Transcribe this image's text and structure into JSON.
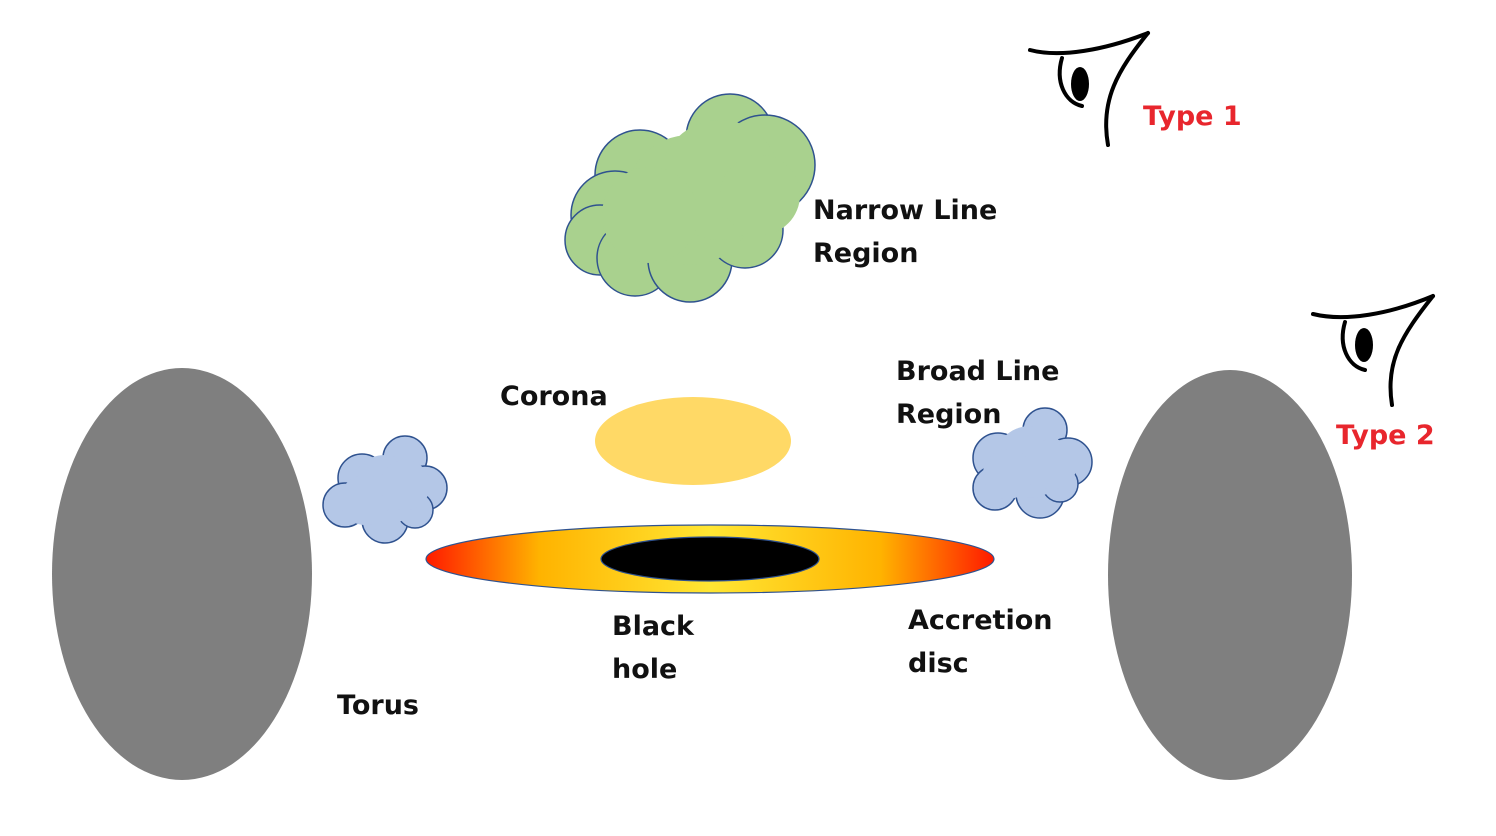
{
  "labels": {
    "narrow_line_region": [
      "Narrow Line",
      "Region"
    ],
    "broad_line_region": [
      "Broad Line",
      "Region"
    ],
    "corona": "Corona",
    "black_hole": [
      "Black",
      "hole"
    ],
    "accretion_disc": [
      "Accretion",
      "disc"
    ],
    "torus": "Torus"
  },
  "viewers": {
    "type1": "Type 1",
    "type2": "Type 2"
  },
  "colors": {
    "torus": "#7f7f7f",
    "narrow_line_cloud": "#a9d18e",
    "broad_line_cloud": "#b4c7e7",
    "cloud_outline": "#2f528f",
    "corona": "#ffd966",
    "disc_center": "#ffe033",
    "disc_mid": "#ffc000",
    "disc_edge": "#ff0000",
    "black_hole": "#000000",
    "viewer_label": "#e8262d",
    "label": "#111111"
  },
  "icons": {
    "viewer": "eye-icon"
  }
}
